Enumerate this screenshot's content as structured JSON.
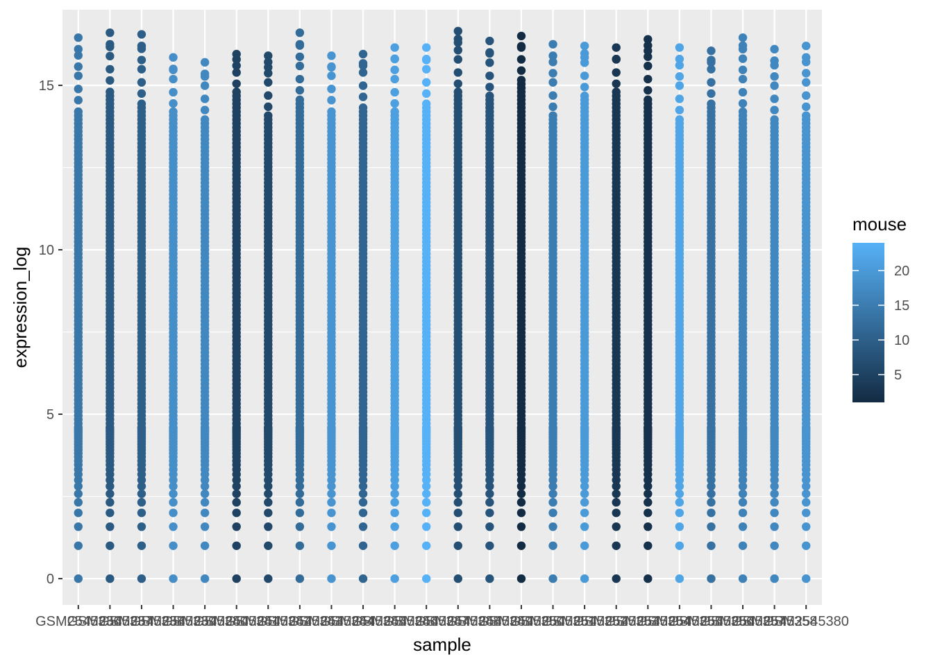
{
  "chart_data": {
    "type": "scatter",
    "xlabel": "sample",
    "ylabel": "expression_log",
    "ylim": [
      -0.8,
      17.3
    ],
    "y_ticks": [
      0,
      5,
      10,
      15
    ],
    "grid": true,
    "legend_placement": "right",
    "legend": {
      "title": "mouse",
      "type": "continuous",
      "ticks": [
        5,
        10,
        15,
        20
      ],
      "range": [
        1,
        24
      ],
      "low_color": "#132B43",
      "high_color": "#56B1F7"
    },
    "categories": [
      "GSM2545336",
      "GSM2545337",
      "GSM2545338",
      "GSM2545339",
      "GSM2545340",
      "GSM2545341",
      "GSM2545342",
      "GSM2545343",
      "GSM2545344",
      "GSM2545345",
      "GSM2545346",
      "GSM2545347",
      "GSM2545348",
      "GSM2545349",
      "GSM2545350",
      "GSM2545351",
      "GSM2545352",
      "GSM2545353",
      "GSM2545354",
      "GSM2545355",
      "GSM2545356",
      "GSM2545357",
      "GSM2545358",
      "GSM2545380"
    ],
    "mouse": [
      14,
      9,
      10,
      18,
      17,
      5,
      6,
      12,
      19,
      11,
      21,
      24,
      7,
      8,
      1,
      15,
      20,
      3,
      2,
      22,
      13,
      16,
      17,
      19
    ],
    "max_values": [
      16.45,
      16.6,
      16.55,
      15.85,
      15.7,
      15.95,
      15.9,
      16.6,
      15.9,
      15.95,
      16.15,
      16.15,
      16.65,
      16.35,
      16.5,
      16.25,
      16.2,
      16.15,
      16.4,
      16.15,
      16.05,
      16.45,
      16.1,
      16.2
    ],
    "dense_top": [
      14.3,
      14.9,
      14.5,
      14.2,
      14.0,
      14.8,
      14.1,
      14.6,
      14.3,
      14.4,
      14.2,
      14.5,
      14.8,
      14.7,
      15.2,
      14.1,
      14.7,
      14.8,
      14.6,
      14.0,
      14.5,
      14.2,
      14.0,
      14.1
    ],
    "low_values": [
      0,
      1.0,
      1.58,
      2.0,
      2.32,
      2.58,
      2.81,
      3.0,
      3.17,
      3.32,
      3.46,
      3.58,
      3.7,
      3.81,
      3.91,
      4.0,
      4.09,
      4.17,
      4.25,
      4.32,
      4.39,
      4.46,
      4.52,
      4.58
    ]
  }
}
